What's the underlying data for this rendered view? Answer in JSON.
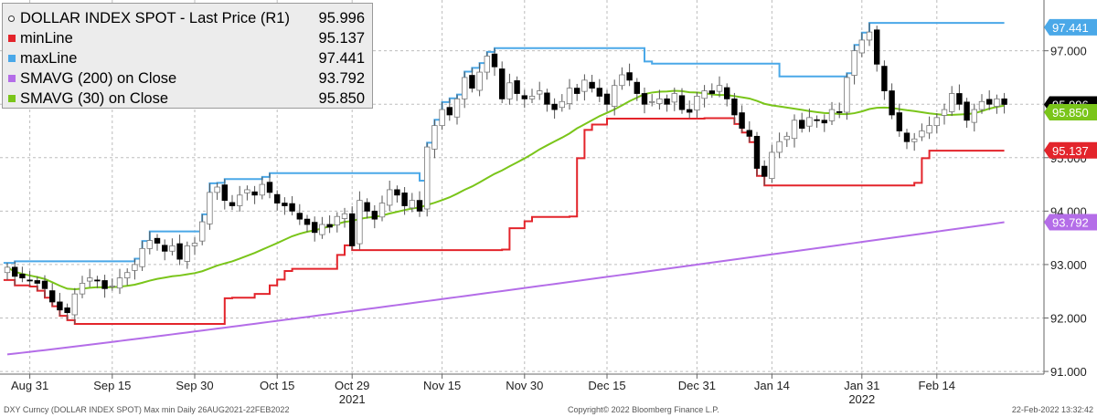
{
  "legend": {
    "items": [
      {
        "label": "DOLLAR INDEX SPOT - Last Price (R1)",
        "value": "95.996",
        "color": "#000000"
      },
      {
        "label": "minLine",
        "value": "95.137",
        "color": "#e3242b"
      },
      {
        "label": "maxLine",
        "value": "97.441",
        "color": "#4aa8e8"
      },
      {
        "label": "SMAVG (200)  on Close",
        "value": "93.792",
        "color": "#b46de8"
      },
      {
        "label": "SMAVG (30)  on Close",
        "value": "95.850",
        "color": "#7ac51a"
      }
    ]
  },
  "footer": {
    "left": "DXY Curncy (DOLLAR INDEX SPOT) Max min  Daily 26AUG2021-22FEB2022",
    "center": "Copyright© 2022 Bloomberg Finance L.P.",
    "right": "22-Feb-2022 13:32:42"
  },
  "chart_data": {
    "type": "candlestick",
    "title": "",
    "ylim": [
      90.95,
      97.95
    ],
    "y_ticks": [
      "91.000",
      "92.000",
      "93.000",
      "94.000",
      "95.000",
      "96.000",
      "97.000"
    ],
    "x_ticks": [
      "Aug 31",
      "Sep 15",
      "Sep 30",
      "Oct 15",
      "Oct 29",
      "Nov 15",
      "Nov 30",
      "Dec 15",
      "Dec 31",
      "Jan 14",
      "Jan 31",
      "Feb 14"
    ],
    "x_tick_index": [
      3,
      14,
      25,
      36,
      46,
      58,
      69,
      80,
      92,
      102,
      114,
      124
    ],
    "year_labels": [
      {
        "label": "2021",
        "at": 46
      },
      {
        "label": "2022",
        "at": 114
      }
    ],
    "badges": [
      {
        "label": "97.441",
        "value": 97.441,
        "color": "#4aa8e8"
      },
      {
        "label": "95.996",
        "value": 95.996,
        "color": "#000000"
      },
      {
        "label": "95.850",
        "value": 95.85,
        "color": "#7ac51a"
      },
      {
        "label": "95.137",
        "value": 95.137,
        "color": "#e3242b"
      },
      {
        "label": "93.792",
        "value": 93.792,
        "color": "#b46de8"
      }
    ],
    "close": [
      92.95,
      92.78,
      92.75,
      92.7,
      92.65,
      92.55,
      92.3,
      92.15,
      92.1,
      92.45,
      92.65,
      92.75,
      92.7,
      92.55,
      92.6,
      92.75,
      92.85,
      93.0,
      93.3,
      93.45,
      93.4,
      93.25,
      93.35,
      93.1,
      93.35,
      93.4,
      93.8,
      94.35,
      94.45,
      94.2,
      94.1,
      94.3,
      94.4,
      94.3,
      94.5,
      94.35,
      94.15,
      94.1,
      94.0,
      93.85,
      93.75,
      93.6,
      93.75,
      93.7,
      93.9,
      93.95,
      93.35,
      94.2,
      94.0,
      93.85,
      94.15,
      94.4,
      94.3,
      94.1,
      94.2,
      94.0,
      95.2,
      95.6,
      95.9,
      95.8,
      96.1,
      96.5,
      96.3,
      96.6,
      96.9,
      96.7,
      96.1,
      96.4,
      96.2,
      96.1,
      96.15,
      96.25,
      96.0,
      95.9,
      96.05,
      96.3,
      96.2,
      96.45,
      96.3,
      96.15,
      96.0,
      96.35,
      96.55,
      96.45,
      96.2,
      96.0,
      96.05,
      96.1,
      96.0,
      96.2,
      95.9,
      95.85,
      96.15,
      96.25,
      96.2,
      96.35,
      96.1,
      95.8,
      95.55,
      95.4,
      94.8,
      94.65,
      95.1,
      95.3,
      95.4,
      95.7,
      95.55,
      95.75,
      95.7,
      95.65,
      95.9,
      95.85,
      96.5,
      97.0,
      97.2,
      97.35,
      96.75,
      96.25,
      95.8,
      95.5,
      95.3,
      95.35,
      95.5,
      95.6,
      95.75,
      95.9,
      96.2,
      96.0,
      95.7,
      95.9,
      96.05,
      96.0,
      96.1,
      95.996
    ]
  }
}
